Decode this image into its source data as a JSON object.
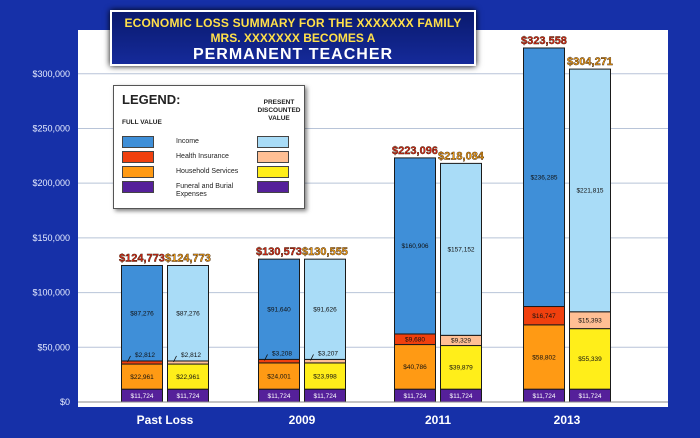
{
  "chart_data": {
    "type": "bar",
    "stacked": true,
    "title": "ECONOMIC LOSS SUMMARY FOR THE XXXXXXX FAMILY",
    "subtitle": "MRS. XXXXXXX BECOMES A",
    "subtitle2": "PERMANENT TEACHER",
    "xlabel": "",
    "ylabel": "",
    "ylim": [
      0,
      340000
    ],
    "yticks": [
      0,
      50000,
      100000,
      150000,
      200000,
      250000,
      300000
    ],
    "ytick_labels": [
      "$0",
      "$50,000",
      "$100,000",
      "$150,000",
      "$200,000",
      "$250,000",
      "$300,000"
    ],
    "grid": true,
    "categories": [
      "Past Loss",
      "2009",
      "2011",
      "2013"
    ],
    "legend": {
      "title": "LEGEND:",
      "full_value_header": "FULL VALUE",
      "pdv_header": "PRESENT DISCOUNTED VALUE",
      "items": [
        "Income",
        "Health Insurance",
        "Household Services",
        "Funeral and Burial Expenses"
      ]
    },
    "colors": {
      "full": {
        "funeral": "#55209a",
        "household": "#ff9a14",
        "health": "#f0400e",
        "income": "#3f8fd8"
      },
      "pdv": {
        "funeral": "#55209a",
        "household": "#ffee1a",
        "health": "#ffbf94",
        "income": "#a9dcf7"
      }
    },
    "bars": [
      {
        "category": "Past Loss",
        "full": {
          "funeral": 11724,
          "household": 22961,
          "health": 2812,
          "income": 87276,
          "total": 124773,
          "labels": {
            "funeral": "$11,724",
            "household": "$22,961",
            "health": "$2,812",
            "income": "$87,276",
            "total": "$124,773"
          }
        },
        "pdv": {
          "funeral": 11724,
          "household": 22961,
          "health": 2812,
          "income": 87276,
          "total": 124773,
          "labels": {
            "funeral": "$11,724",
            "household": "$22,961",
            "health": "$2,812",
            "income": "$87,276",
            "total": "$124,773"
          }
        }
      },
      {
        "category": "2009",
        "full": {
          "funeral": 11724,
          "household": 24001,
          "health": 3208,
          "income": 91640,
          "total": 130573,
          "labels": {
            "funeral": "$11,724",
            "household": "$24,001",
            "health": "$3,208",
            "income": "$91,640",
            "total": "$130,573"
          }
        },
        "pdv": {
          "funeral": 11724,
          "household": 23998,
          "health": 3207,
          "income": 91626,
          "total": 130555,
          "labels": {
            "funeral": "$11,724",
            "household": "$23,998",
            "health": "$3,207",
            "income": "$91,626",
            "total": "$130,555"
          }
        }
      },
      {
        "category": "2011",
        "full": {
          "funeral": 11724,
          "household": 40786,
          "health": 9680,
          "income": 160906,
          "total": 223096,
          "labels": {
            "funeral": "$11,724",
            "household": "$40,786",
            "health": "$9,680",
            "income": "$160,906",
            "total": "$223,096"
          }
        },
        "pdv": {
          "funeral": 11724,
          "household": 39879,
          "health": 9329,
          "income": 157152,
          "total": 218084,
          "labels": {
            "funeral": "$11,724",
            "household": "$39,879",
            "health": "$9,329",
            "income": "$157,152",
            "total": "$218,084"
          }
        }
      },
      {
        "category": "2013",
        "full": {
          "funeral": 11724,
          "household": 58802,
          "health": 16747,
          "income": 236285,
          "total": 323558,
          "labels": {
            "funeral": "$11,724",
            "household": "$58,802",
            "health": "$16,747",
            "income": "$236,285",
            "total": "$323,558"
          }
        },
        "pdv": {
          "funeral": 11724,
          "household": 55339,
          "health": 15393,
          "income": 221815,
          "total": 304271,
          "labels": {
            "funeral": "$11,724",
            "household": "$55,339",
            "health": "$15,393",
            "income": "$221,815",
            "total": "$304,271"
          }
        }
      }
    ]
  }
}
